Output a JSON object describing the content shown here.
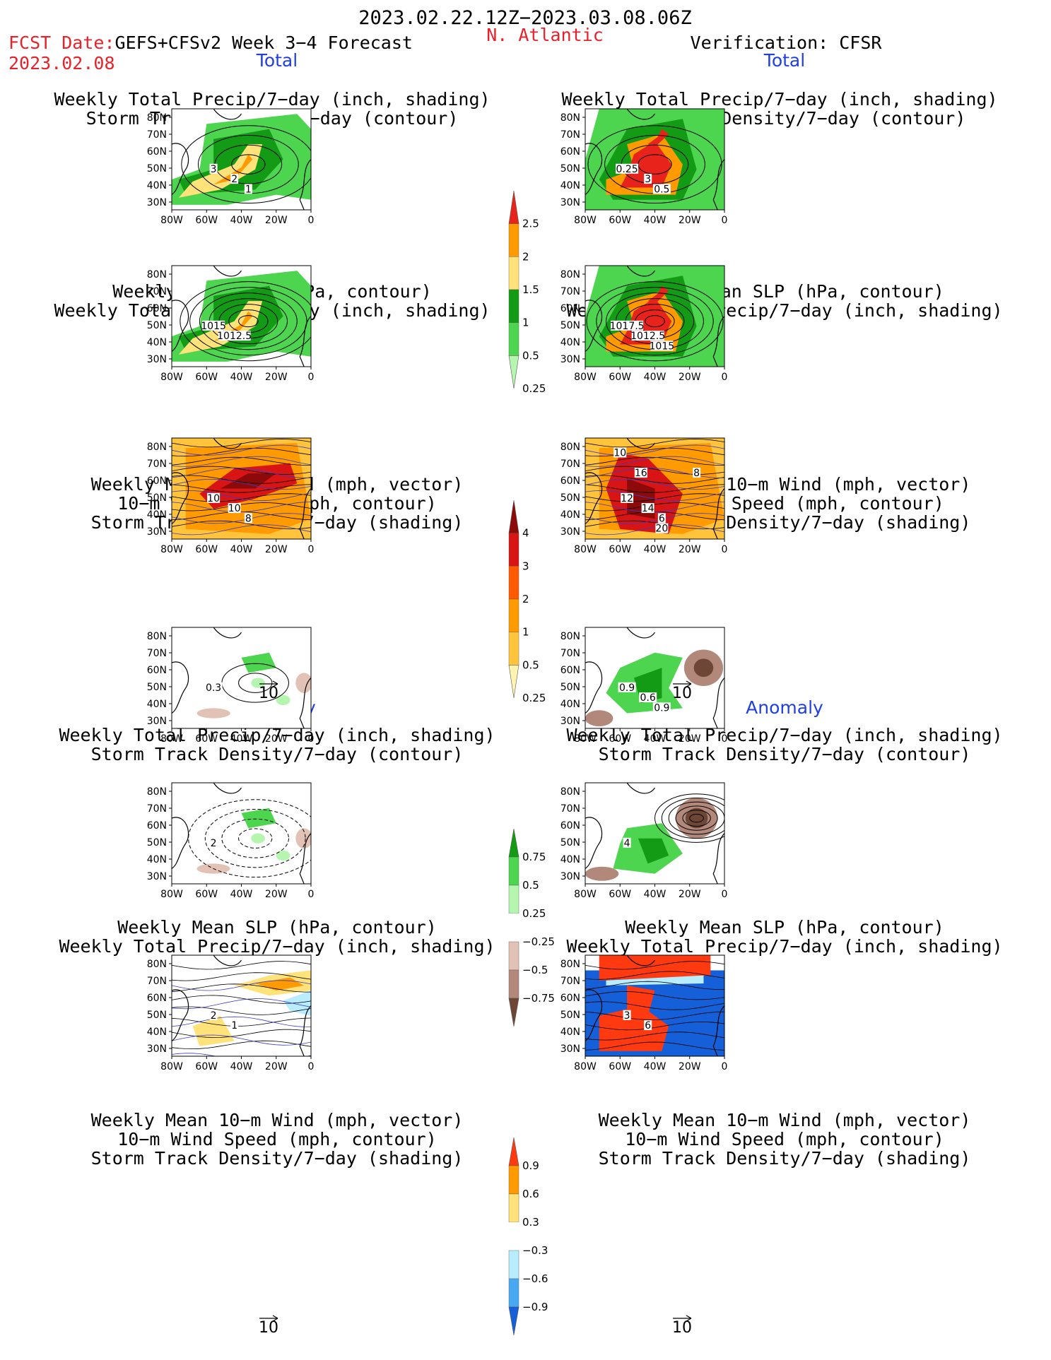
{
  "header": {
    "date_range": "2023.02.22.12Z−2023.03.08.06Z",
    "fcst_label": "FCST Date:",
    "fcst_model": "GEFS+CFSv2 Week 3−4 Forecast",
    "fcst_date": "2023.02.08",
    "region": "N. Atlantic",
    "verification": "Verification: CFSR"
  },
  "sections": {
    "total": "Total",
    "anomaly": "Anomaly"
  },
  "titles": {
    "precip_storm": [
      "Weekly Total Precip/7−day (inch, shading)",
      "Storm Track Density/7−day (contour)"
    ],
    "slp_precip": [
      "Weekly Mean SLP (hPa, contour)",
      "Weekly Total Precip/7−day (inch, shading)"
    ],
    "wind_storm": [
      "Weekly Mean 10−m Wind (mph, vector)",
      "10−m Wind Speed (mph, contour)",
      "Storm Track Density/7−day (shading)"
    ]
  },
  "axes": {
    "lat_ticks": [
      "80N",
      "70N",
      "60N",
      "50N",
      "40N",
      "30N"
    ],
    "lon_ticks": [
      "80W",
      "60W",
      "40W",
      "20W",
      "0"
    ]
  },
  "vector_ref": "10",
  "colorbars": [
    {
      "labels": [
        "2.5",
        "2",
        "1.5",
        "1",
        "0.5",
        "0.25"
      ],
      "colors": [
        "#e8231b",
        "#ff9a00",
        "#ffe27a",
        "#139b16",
        "#4ed54f",
        "#b6f5b0"
      ]
    },
    {
      "labels": [
        "4",
        "3",
        "2",
        "1",
        "0.5",
        "0.25"
      ],
      "colors": [
        "#8c0a0a",
        "#d81414",
        "#ff5a00",
        "#ff9a00",
        "#ffc43c",
        "#fff3b0"
      ]
    },
    {
      "labels": [
        "0.75",
        "0.5",
        "0.25",
        "−0.25",
        "−0.5",
        "−0.75"
      ],
      "colors": [
        "#139b16",
        "#4ed54f",
        "#b6f5b0",
        "#ffffff",
        "#e3c2b6",
        "#b2887a",
        "#6e4636"
      ]
    },
    {
      "labels": [
        "0.9",
        "0.6",
        "0.3",
        "−0.3",
        "−0.6",
        "−0.9"
      ],
      "colors": [
        "#ff3a10",
        "#ff9a00",
        "#ffe27a",
        "#ffffff",
        "#b8ecff",
        "#49a8f2",
        "#1560d8"
      ]
    }
  ],
  "map_labels": {
    "r1_left": [
      "3",
      "2",
      "1"
    ],
    "r1_right": [
      "0.25",
      "3",
      "0.5"
    ],
    "r2_left": [
      "1015",
      "1012.5"
    ],
    "r2_right": [
      "1017.5",
      "1012.5",
      "1015"
    ],
    "r3_left": [
      "10",
      "10",
      "8"
    ],
    "r3_right": [
      "12",
      "14",
      "6",
      "10",
      "8",
      "16",
      "20"
    ],
    "r4_left": [
      "0.3"
    ],
    "r4_right": [
      "0.9",
      "0.6",
      "0.9"
    ],
    "r5_left": [
      "2"
    ],
    "r5_right": [
      "4"
    ],
    "r6_left": [
      "2",
      "1"
    ],
    "r6_right": [
      "3",
      "6"
    ]
  }
}
